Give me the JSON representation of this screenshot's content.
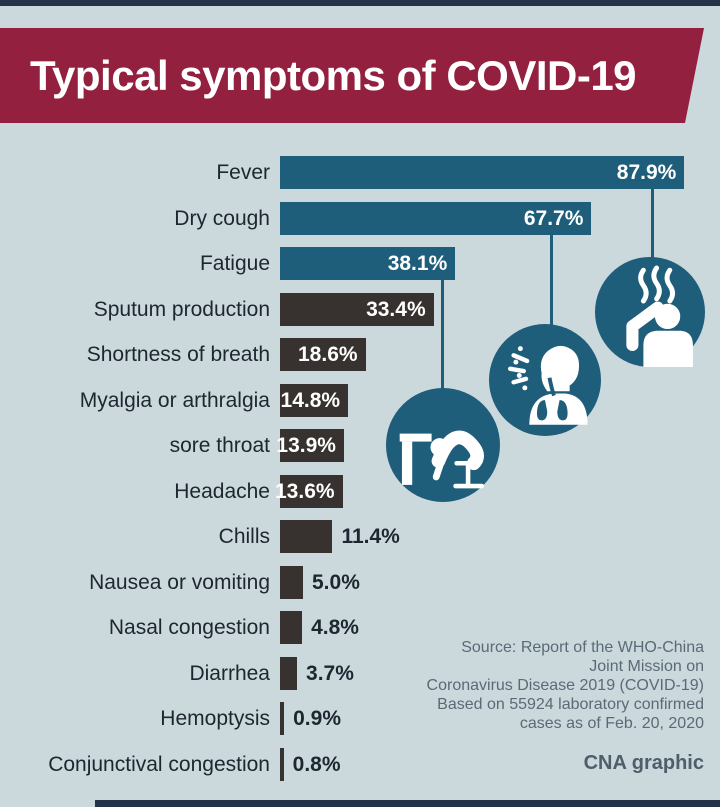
{
  "page": {
    "background_color": "#cbd8dc",
    "strip_color": "#243349"
  },
  "header": {
    "title": "Typical symptoms of COVID-19",
    "banner_color": "#93203f",
    "text_color": "#ffffff"
  },
  "chart_data": {
    "type": "bar",
    "orientation": "horizontal",
    "title": "Typical symptoms of COVID-19",
    "unit": "%",
    "xlim": [
      0,
      92
    ],
    "grid": false,
    "legend": "none",
    "categories": [
      "Fever",
      "Dry cough",
      "Fatigue",
      "Sputum production",
      "Shortness of breath",
      "Myalgia or arthralgia",
      "sore throat",
      "Headache",
      "Chills",
      "Nausea or vomiting",
      "Nasal congestion",
      "Diarrhea",
      "Hemoptysis",
      "Conjunctival congestion"
    ],
    "values": [
      87.9,
      67.7,
      38.1,
      33.4,
      18.6,
      14.8,
      13.9,
      13.6,
      11.4,
      5.0,
      4.8,
      3.7,
      0.9,
      0.8
    ],
    "value_labels": [
      "87.9%",
      "67.7%",
      "38.1%",
      "33.4%",
      "18.6%",
      "14.8%",
      "13.9%",
      "13.6%",
      "11.4%",
      "5.0%",
      "4.8%",
      "3.7%",
      "0.9%",
      "0.8%"
    ],
    "highlight_count": 3,
    "highlight_color": "#1e5e7b",
    "bar_color": "#37322f"
  },
  "icons": {
    "fever": "fever-person-icon",
    "cough": "cough-person-icon",
    "fatigue": "fatigue-person-icon",
    "circle_color": "#1e5e7b",
    "glyph_color": "#ffffff"
  },
  "source": {
    "lines": [
      "Source: Report of the WHO-China",
      "Joint Mission on",
      "Coronavirus Disease 2019 (COVID-19)",
      "Based on 55924 laboratory confirmed",
      "cases as of Feb. 20, 2020"
    ],
    "credit": "CNA graphic"
  }
}
